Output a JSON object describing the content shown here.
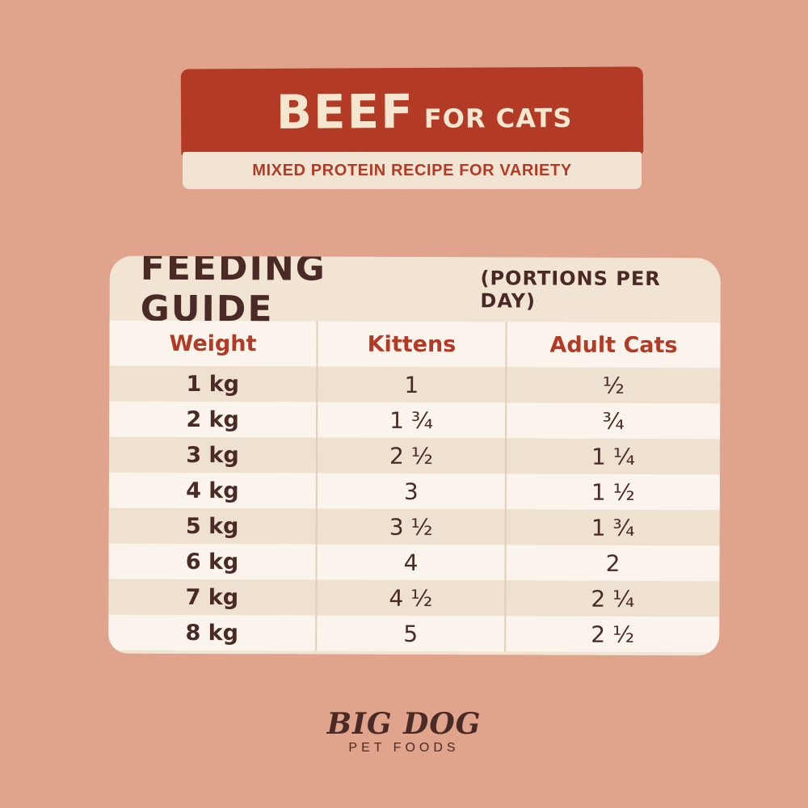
{
  "banner": {
    "title_main": "BEEF",
    "title_sub": "FOR CATS",
    "tagline": "MIXED PROTEIN RECIPE FOR VARIETY"
  },
  "guide": {
    "title": "FEEDING GUIDE",
    "subtitle": "(PORTIONS PER DAY)",
    "columns": [
      "Weight",
      "Kittens",
      "Adult Cats"
    ],
    "rows": [
      [
        "1 kg",
        "1",
        "½"
      ],
      [
        "2 kg",
        "1 ¾",
        "¾"
      ],
      [
        "3 kg",
        "2 ½",
        "1 ¼"
      ],
      [
        "4 kg",
        "3",
        "1 ½"
      ],
      [
        "5 kg",
        "3 ½",
        "1 ¾"
      ],
      [
        "6 kg",
        "4",
        "2"
      ],
      [
        "7 kg",
        "4 ½",
        "2 ¼"
      ],
      [
        "8 kg",
        "5",
        "2 ½"
      ]
    ]
  },
  "logo": {
    "brand": "BIG DOG",
    "tagline": "PET FOODS"
  },
  "colors": {
    "background": "#dfa48b",
    "accent_red": "#b33b26",
    "cream": "#f2e4d2",
    "dark_brown": "#4a2a26"
  }
}
